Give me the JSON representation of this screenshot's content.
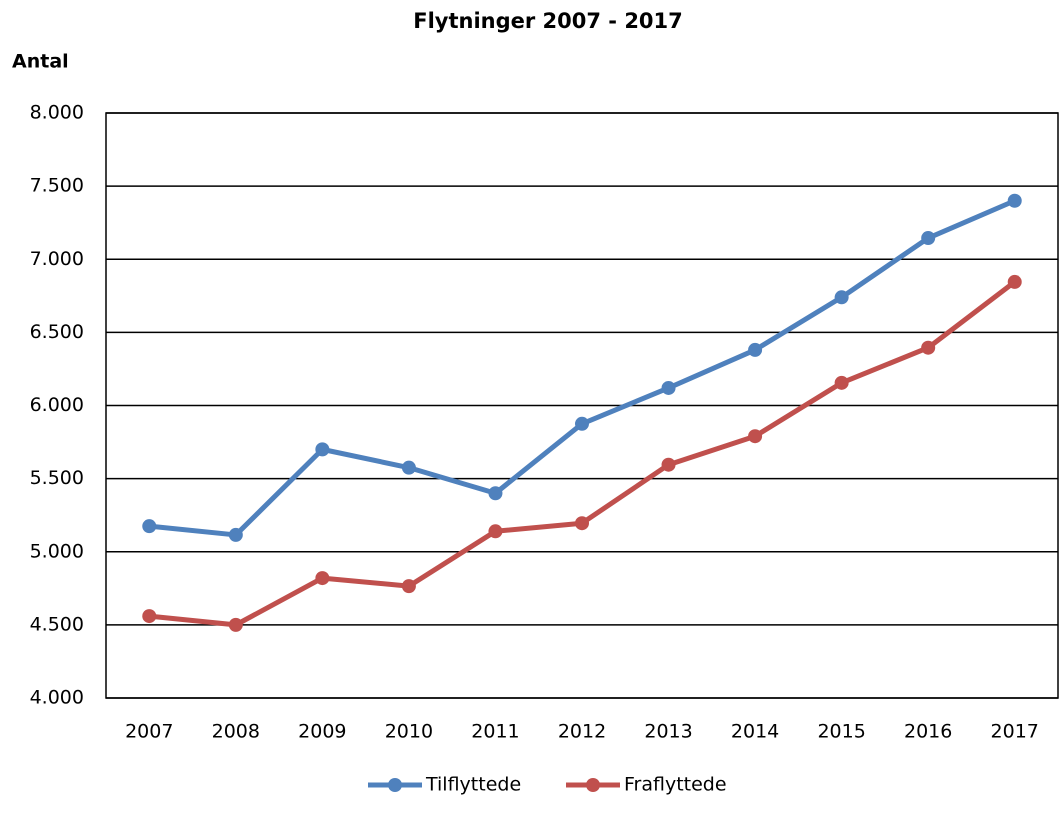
{
  "chart_data": {
    "type": "line",
    "title": "Flytninger 2007 - 2017",
    "y_label": "Antal",
    "categories": [
      "2007",
      "2008",
      "2009",
      "2010",
      "2011",
      "2012",
      "2013",
      "2014",
      "2015",
      "2016",
      "2017"
    ],
    "series": [
      {
        "name": "Tilflyttede",
        "color": "#4f81bd",
        "values": [
          5175,
          5115,
          5700,
          5575,
          5400,
          5875,
          6120,
          6380,
          6740,
          7145,
          7400
        ]
      },
      {
        "name": "Fraflyttede",
        "color": "#c0504d",
        "values": [
          4560,
          4500,
          4820,
          4765,
          5140,
          5195,
          5595,
          5790,
          6155,
          6395,
          6845
        ]
      }
    ],
    "ylim": [
      4000,
      8000
    ],
    "yticks": [
      {
        "value": 4000,
        "label": "4.000"
      },
      {
        "value": 4500,
        "label": "4.500"
      },
      {
        "value": 5000,
        "label": "5.000"
      },
      {
        "value": 5500,
        "label": "5.500"
      },
      {
        "value": 6000,
        "label": "6.000"
      },
      {
        "value": 6500,
        "label": "6.500"
      },
      {
        "value": 7000,
        "label": "7.000"
      },
      {
        "value": 7500,
        "label": "7.500"
      },
      {
        "value": 8000,
        "label": "8.000"
      }
    ],
    "grid": true,
    "legend": "bottom"
  }
}
